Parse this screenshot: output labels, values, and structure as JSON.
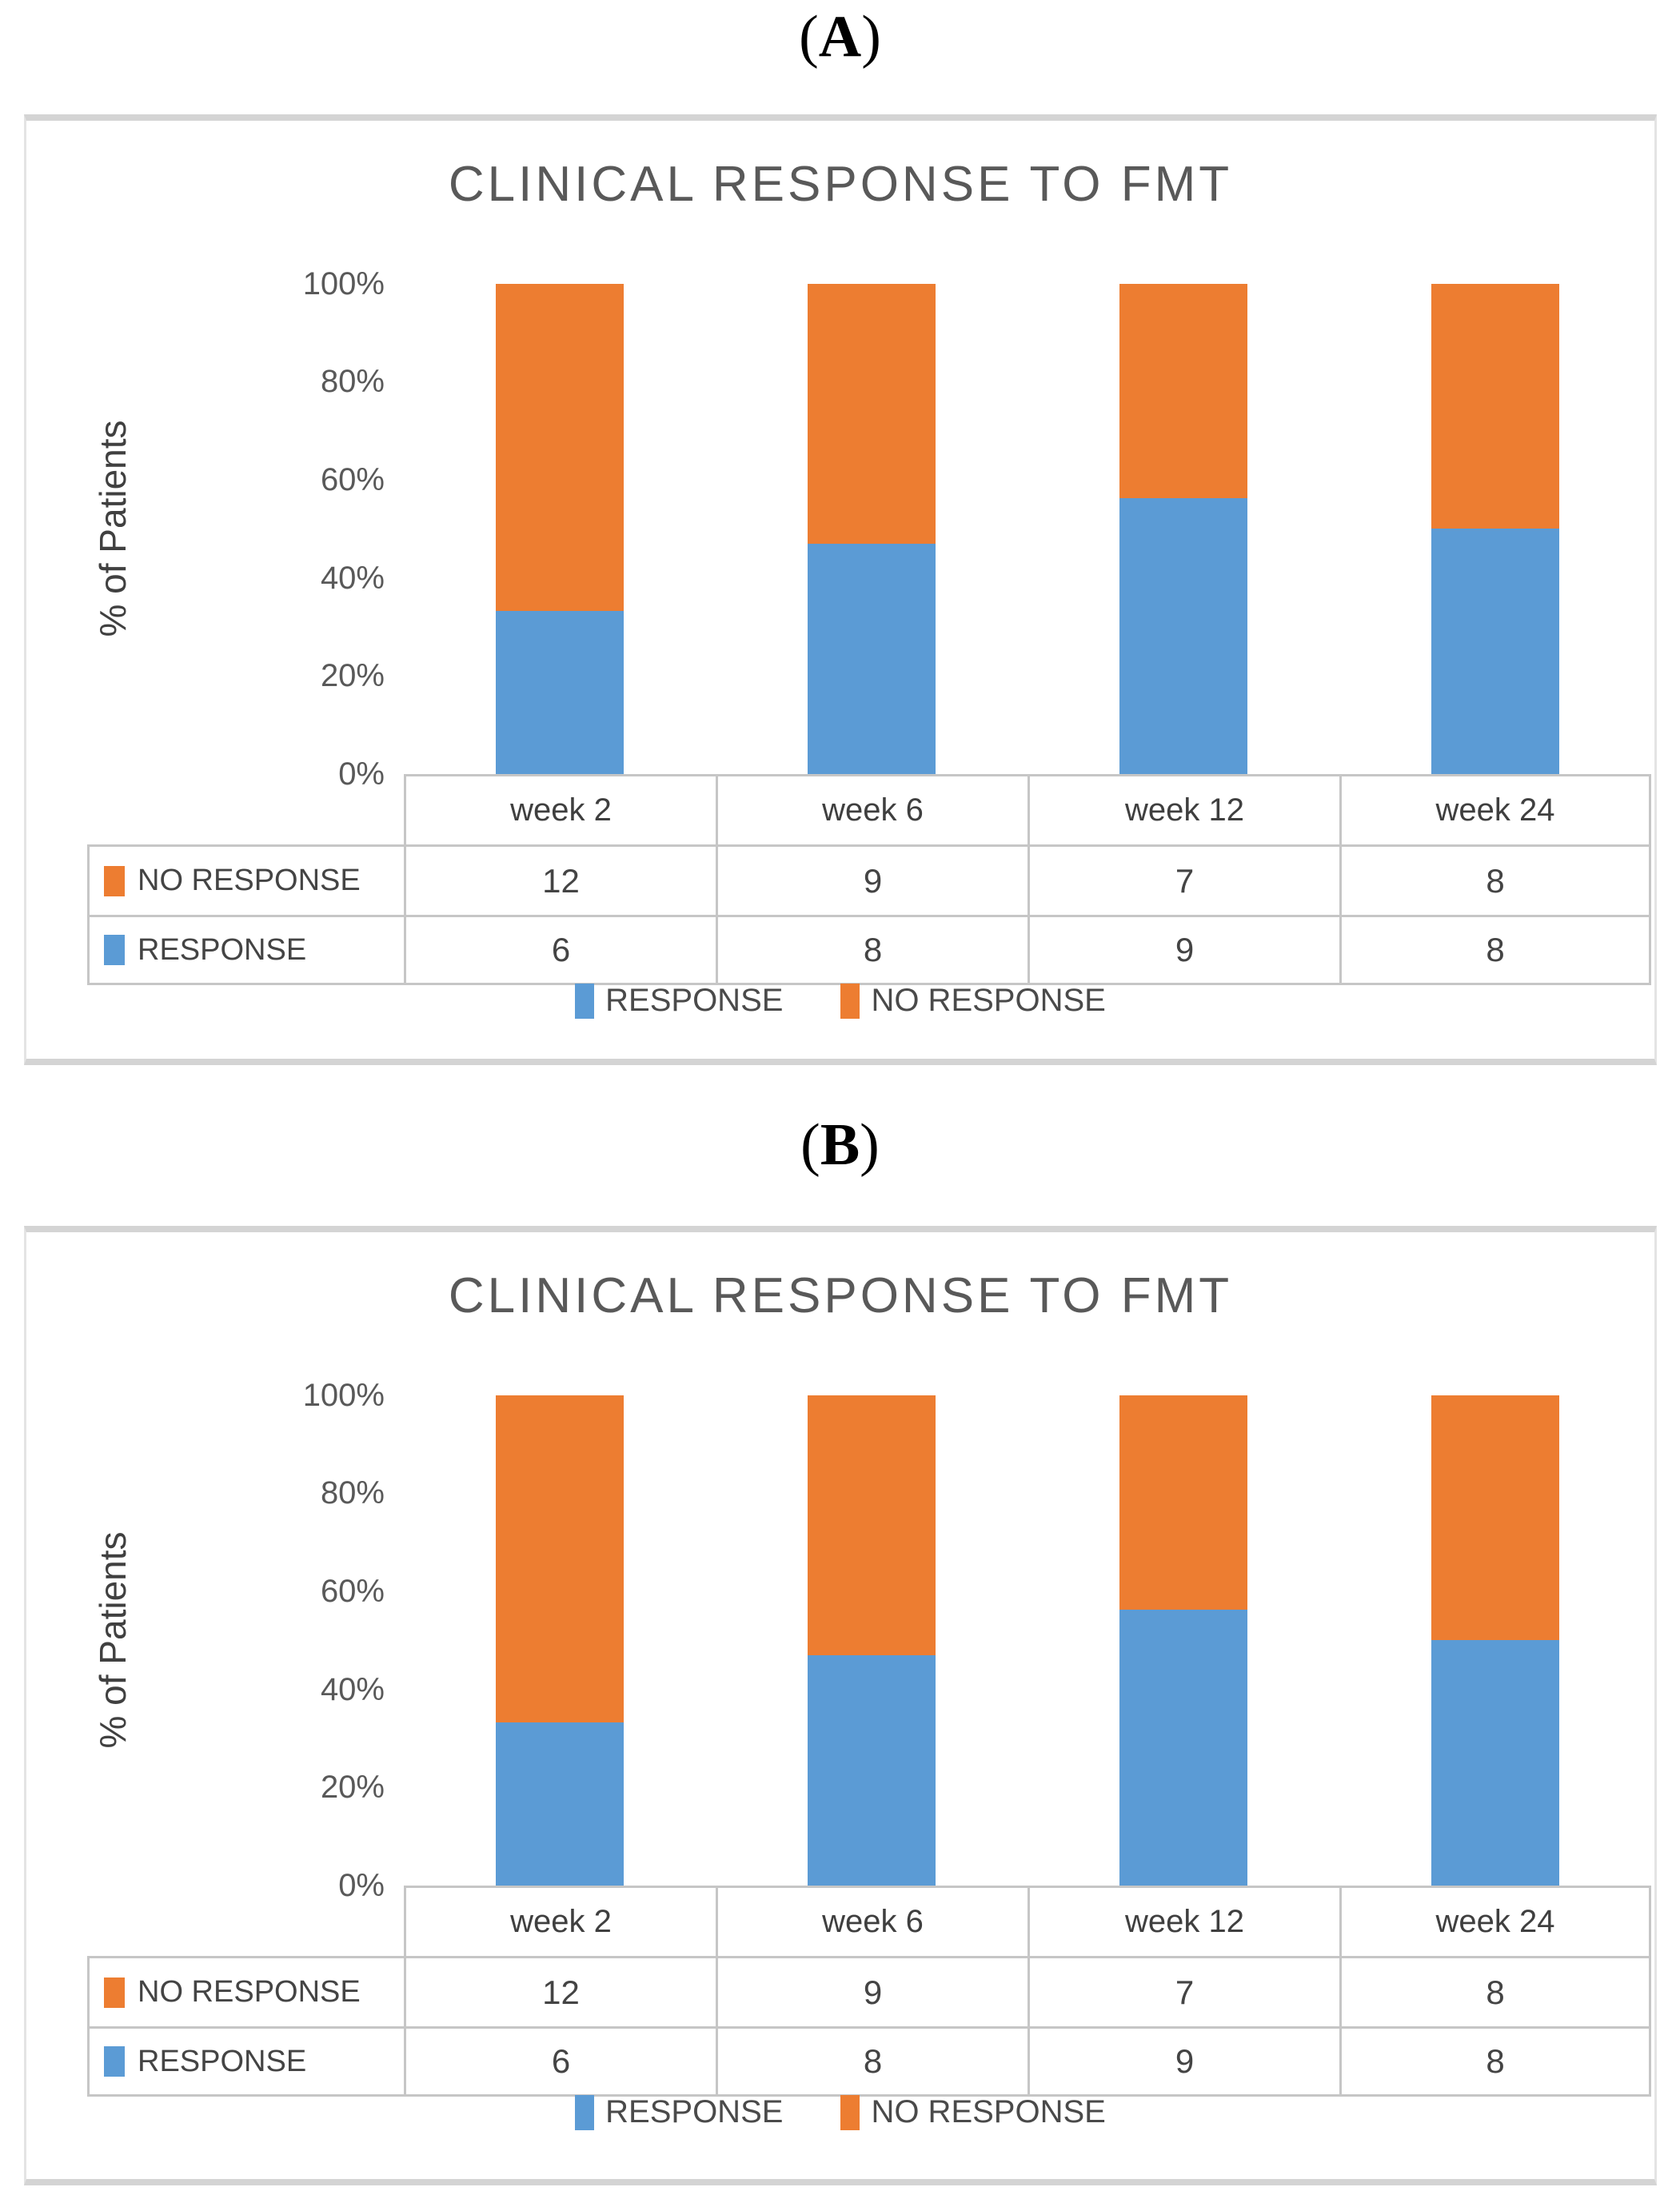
{
  "chrome": {
    "paren_open": "(",
    "paren_close": ")"
  },
  "colors": {
    "response": "#5B9BD5",
    "no_response": "#ED7D31",
    "title_text": "#595959",
    "body_text": "#444444",
    "table_border": "#c6c6c6",
    "panel_border": "#d4d4d4"
  },
  "panels": [
    {
      "panel_letter": "A",
      "title": "CLINICAL RESPONSE TO FMT",
      "y_axis_title": "% of Patients",
      "y_ticks": [
        "100%",
        "80%",
        "60%",
        "40%",
        "20%",
        "0%"
      ],
      "categories": [
        "week 2",
        "week 6",
        "week 12",
        "week 24"
      ],
      "table_rows": [
        {
          "label": "NO RESPONSE",
          "swatch_color": "#ED7D31",
          "values": [
            "12",
            "9",
            "7",
            "8"
          ]
        },
        {
          "label": "RESPONSE",
          "swatch_color": "#5B9BD5",
          "values": [
            "6",
            "8",
            "9",
            "8"
          ]
        }
      ],
      "legend": [
        {
          "label": "RESPONSE",
          "color": "#5B9BD5"
        },
        {
          "label": "NO RESPONSE",
          "color": "#ED7D31"
        }
      ]
    },
    {
      "panel_letter": "B",
      "title": "CLINICAL RESPONSE TO FMT",
      "y_axis_title": "% of Patients",
      "y_ticks": [
        "100%",
        "80%",
        "60%",
        "40%",
        "20%",
        "0%"
      ],
      "categories": [
        "week 2",
        "week 6",
        "week 12",
        "week 24"
      ],
      "table_rows": [
        {
          "label": "NO RESPONSE",
          "swatch_color": "#ED7D31",
          "values": [
            "12",
            "9",
            "7",
            "8"
          ]
        },
        {
          "label": "RESPONSE",
          "swatch_color": "#5B9BD5",
          "values": [
            "6",
            "8",
            "9",
            "8"
          ]
        }
      ],
      "legend": [
        {
          "label": "RESPONSE",
          "color": "#5B9BD5"
        },
        {
          "label": "NO RESPONSE",
          "color": "#ED7D31"
        }
      ]
    }
  ],
  "chart_data": [
    {
      "type": "bar",
      "subtype": "100%-stacked-column",
      "title": "CLINICAL RESPONSE TO FMT",
      "categories": [
        "week 2",
        "week 6",
        "week 12",
        "week 24"
      ],
      "series": [
        {
          "name": "RESPONSE",
          "color": "#5B9BD5",
          "values": [
            6,
            8,
            9,
            8
          ]
        },
        {
          "name": "NO RESPONSE",
          "color": "#ED7D31",
          "values": [
            12,
            9,
            7,
            8
          ]
        }
      ],
      "stacked_percent_response": [
        33.3,
        47.1,
        56.3,
        50.0
      ],
      "xlabel": "",
      "ylabel": "% of Patients",
      "ylim": [
        0,
        100
      ],
      "y_tick_labels": [
        "0%",
        "20%",
        "40%",
        "60%",
        "80%",
        "100%"
      ],
      "grid": false,
      "legend_position": "bottom",
      "data_table_shown": true
    },
    {
      "type": "bar",
      "subtype": "100%-stacked-column",
      "title": "CLINICAL RESPONSE TO FMT",
      "categories": [
        "week 2",
        "week 6",
        "week 12",
        "week 24"
      ],
      "series": [
        {
          "name": "RESPONSE",
          "color": "#5B9BD5",
          "values": [
            6,
            8,
            9,
            8
          ]
        },
        {
          "name": "NO RESPONSE",
          "color": "#ED7D31",
          "values": [
            12,
            9,
            7,
            8
          ]
        }
      ],
      "stacked_percent_response": [
        33.3,
        47.1,
        56.3,
        50.0
      ],
      "xlabel": "",
      "ylabel": "% of Patients",
      "ylim": [
        0,
        100
      ],
      "y_tick_labels": [
        "0%",
        "20%",
        "40%",
        "60%",
        "80%",
        "100%"
      ],
      "grid": false,
      "legend_position": "bottom",
      "data_table_shown": true
    }
  ]
}
